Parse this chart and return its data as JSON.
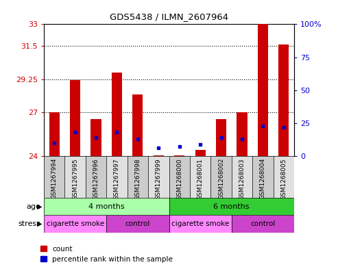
{
  "title": "GDS5438 / ILMN_2607964",
  "samples": [
    "GSM1267994",
    "GSM1267995",
    "GSM1267996",
    "GSM1267997",
    "GSM1267998",
    "GSM1267999",
    "GSM1268000",
    "GSM1268001",
    "GSM1268002",
    "GSM1268003",
    "GSM1268004",
    "GSM1268005"
  ],
  "red_values": [
    27.0,
    29.2,
    26.5,
    29.7,
    28.2,
    24.05,
    24.05,
    24.4,
    26.5,
    27.0,
    33.0,
    31.6
  ],
  "blue_percentiles": [
    10,
    18,
    14,
    18,
    13,
    6,
    7,
    9,
    14,
    13,
    23,
    22
  ],
  "ymin": 24,
  "ymax": 33,
  "yticks": [
    24,
    27,
    29.25,
    31.5,
    33
  ],
  "ytick_labels": [
    "24",
    "27",
    "29.25",
    "31.5",
    "33"
  ],
  "right_yticks": [
    0,
    25,
    50,
    75,
    100
  ],
  "right_ytick_labels": [
    "0",
    "25",
    "50",
    "75",
    "100%"
  ],
  "red_color": "#cc0000",
  "blue_color": "#0000cc",
  "age_groups": [
    {
      "label": "4 months",
      "start": 0,
      "end": 5,
      "color": "#aaffaa"
    },
    {
      "label": "6 months",
      "start": 6,
      "end": 11,
      "color": "#33cc33"
    }
  ],
  "stress_groups": [
    {
      "label": "cigarette smoke",
      "start": 0,
      "end": 2,
      "color": "#ff88ff"
    },
    {
      "label": "control",
      "start": 3,
      "end": 5,
      "color": "#cc44cc"
    },
    {
      "label": "cigarette smoke",
      "start": 6,
      "end": 8,
      "color": "#ff88ff"
    },
    {
      "label": "control",
      "start": 9,
      "end": 11,
      "color": "#cc44cc"
    }
  ],
  "legend_items": [
    {
      "label": "count",
      "color": "#cc0000"
    },
    {
      "label": "percentile rank within the sample",
      "color": "#0000cc"
    }
  ],
  "background_color": "#ffffff",
  "tick_color_left": "#cc0000",
  "tick_color_right": "#0000cc",
  "sample_bg_even": "#cccccc",
  "sample_bg_odd": "#e0e0e0"
}
